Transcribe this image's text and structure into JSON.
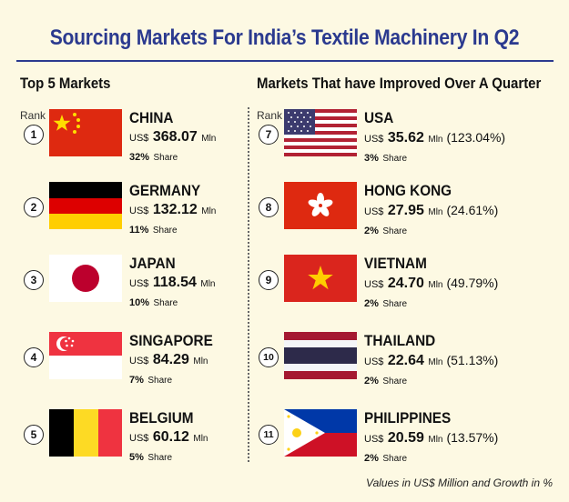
{
  "title": "Sourcing Markets For India’s Textile Machinery In Q2",
  "left_heading": "Top 5 Markets",
  "right_heading": "Markets That have Improved Over A Quarter",
  "rank_label": "Rank",
  "currency": "US$",
  "unit": "Mln",
  "share_word": "Share",
  "top_markets": [
    {
      "rank": "1",
      "country": "CHINA",
      "value": "368.07",
      "share": "32%",
      "flag_icon": "china-flag-icon"
    },
    {
      "rank": "2",
      "country": "GERMANY",
      "value": "132.12",
      "share": "11%",
      "flag_icon": "germany-flag-icon"
    },
    {
      "rank": "3",
      "country": "JAPAN",
      "value": "118.54",
      "share": "10%",
      "flag_icon": "japan-flag-icon"
    },
    {
      "rank": "4",
      "country": "SINGAPORE",
      "value": "84.29",
      "share": "7%",
      "flag_icon": "singapore-flag-icon"
    },
    {
      "rank": "5",
      "country": "BELGIUM",
      "value": "60.12",
      "share": "5%",
      "flag_icon": "belgium-flag-icon"
    }
  ],
  "improved_markets": [
    {
      "rank": "7",
      "country": "USA",
      "value": "35.62",
      "growth": "(123.04%)",
      "share": "3%",
      "flag_icon": "usa-flag-icon"
    },
    {
      "rank": "8",
      "country": "HONG KONG",
      "value": "27.95",
      "growth": "(24.61%)",
      "share": "2%",
      "flag_icon": "hong-kong-flag-icon"
    },
    {
      "rank": "9",
      "country": "VIETNAM",
      "value": "24.70",
      "growth": "(49.79%)",
      "share": "2%",
      "flag_icon": "vietnam-flag-icon"
    },
    {
      "rank": "10",
      "country": "THAILAND",
      "value": "22.64",
      "growth": "(51.13%)",
      "share": "2%",
      "flag_icon": "thailand-flag-icon"
    },
    {
      "rank": "11",
      "country": "PHILIPPINES",
      "value": "20.59",
      "growth": "(13.57%)",
      "share": "2%",
      "flag_icon": "philippines-flag-icon"
    }
  ],
  "footer": "Values in US$ Million and Growth in %",
  "colors": {
    "title": "#2b3a8f",
    "background": "#fdf9e3"
  }
}
